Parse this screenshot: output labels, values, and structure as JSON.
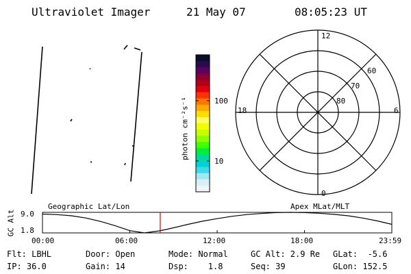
{
  "header": {
    "title": "Ultraviolet Imager",
    "date": "21 May 07",
    "time": "08:05:23 UT"
  },
  "colorbar": {
    "unit_label": "photon cm⁻²s⁻¹",
    "tick_labels": [
      "100",
      "10"
    ],
    "colors": [
      "#0b0b30",
      "#2a0a4a",
      "#5a0060",
      "#8a0030",
      "#b00018",
      "#e00010",
      "#ff3300",
      "#ff7700",
      "#ffaa00",
      "#ffdd00",
      "#ffff66",
      "#f0ff00",
      "#c8ff00",
      "#8cff00",
      "#40ff00",
      "#00ee40",
      "#00d8a0",
      "#00d0d8",
      "#40d8e8",
      "#a0e8f0",
      "#d8f0f4",
      "#eef6f8"
    ]
  },
  "polar": {
    "mlt_labels": {
      "top": "12",
      "bottom": "0",
      "left": "18",
      "right": "6"
    },
    "lat_labels": [
      "60",
      "70",
      "80"
    ]
  },
  "altitude_plot": {
    "title_left": "Geographic Lat/Lon",
    "title_right": "Apex MLat/MLT",
    "ylabel": "GC Alt",
    "yticks": [
      "9.0",
      "1.8"
    ],
    "xticks": [
      "00:00",
      "06:00",
      "12:00",
      "18:00",
      "23:59"
    ],
    "current_time_color": "#cc0000"
  },
  "footer": {
    "row1": [
      "Flt: LBHL",
      "Door: Open",
      "Mode: Normal",
      "GC Alt: 2.9 Re",
      "GLat:  -5.6"
    ],
    "row2": [
      "IP: 36.0",
      "Gain: 14",
      "Dsp:    1.8",
      "Seq: 39",
      "GLon: 152.5"
    ]
  },
  "chart_data": {
    "type": "line",
    "title": "",
    "xlabel": "",
    "ylabel": "GC Alt",
    "xlim": [
      0,
      24
    ],
    "ylim": [
      1.8,
      9.0
    ],
    "series": [
      {
        "x": [
          0,
          1,
          2,
          3,
          4,
          5,
          6,
          7,
          8,
          8.5,
          9,
          10,
          11,
          12,
          13,
          14,
          15,
          16,
          17,
          18,
          19,
          20,
          21,
          22,
          23,
          24
        ],
        "values": [
          8.4,
          8.2,
          7.8,
          7.0,
          5.8,
          4.3,
          2.6,
          1.8,
          2.5,
          3.0,
          3.6,
          4.8,
          5.9,
          6.8,
          7.6,
          8.2,
          8.6,
          8.9,
          9.0,
          8.9,
          8.7,
          8.3,
          7.8,
          7.0,
          6.0,
          4.8
        ]
      }
    ],
    "marker_time": 8.09
  }
}
